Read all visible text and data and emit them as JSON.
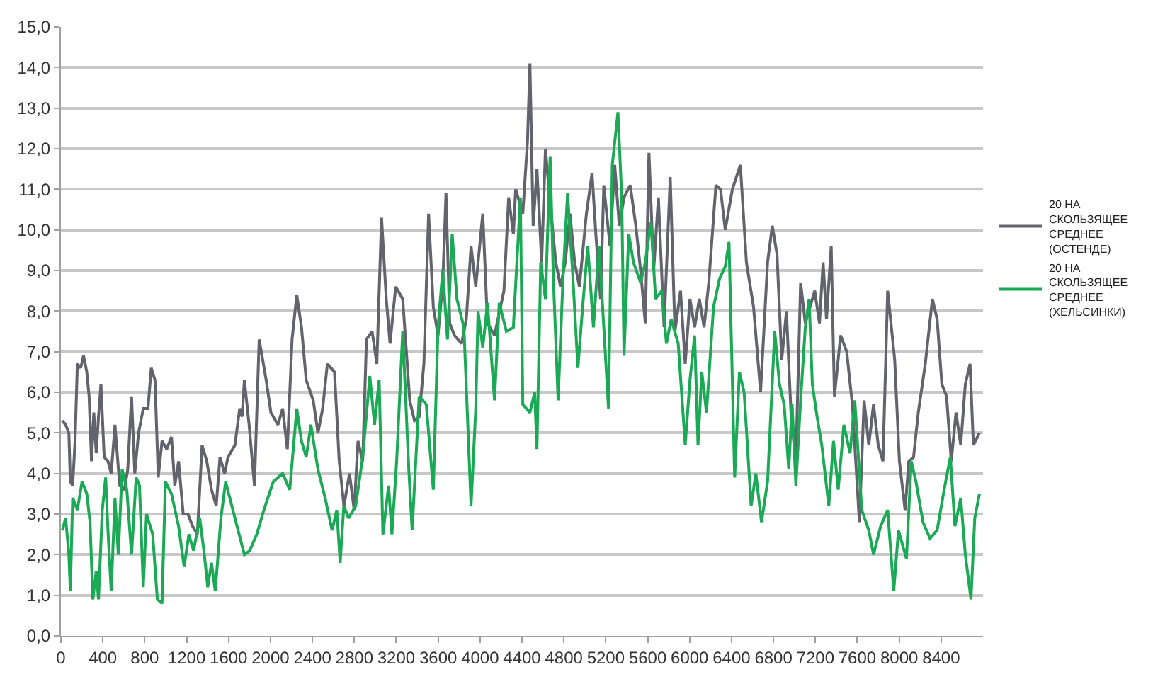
{
  "chart_data": {
    "type": "line",
    "xlim": [
      0,
      8800
    ],
    "xticks": [
      0,
      400,
      800,
      1200,
      1600,
      2000,
      2400,
      2800,
      3200,
      3600,
      4000,
      4400,
      4800,
      5200,
      5600,
      6000,
      6400,
      6800,
      7200,
      7600,
      8000,
      8400
    ],
    "ylim": [
      0,
      15
    ],
    "yticks": [
      {
        "value": 0,
        "label": "0,0"
      },
      {
        "value": 1,
        "label": "1,0"
      },
      {
        "value": 2,
        "label": "2,0"
      },
      {
        "value": 3,
        "label": "3,0"
      },
      {
        "value": 4,
        "label": "4,0"
      },
      {
        "value": 5,
        "label": "5,0"
      },
      {
        "value": 6,
        "label": "6,0"
      },
      {
        "value": 7,
        "label": "7,0"
      },
      {
        "value": 8,
        "label": "8,0"
      },
      {
        "value": 9,
        "label": "9,0"
      },
      {
        "value": 10,
        "label": "10,0"
      },
      {
        "value": 11,
        "label": "11,0"
      },
      {
        "value": 12,
        "label": "12,0"
      },
      {
        "value": 13,
        "label": "13,0"
      },
      {
        "value": 14,
        "label": "14,0"
      },
      {
        "value": 15,
        "label": "15,0"
      }
    ],
    "grid": "y",
    "legend": "right",
    "marker": "none",
    "line_style": "solid",
    "series": [
      {
        "name": "20 НА СКОЛЬЗЯЩЕЕ СРЕДНЕЕ (ОСТЕНДЕ)",
        "color": "#63636e",
        "x": [
          13,
          45,
          76,
          90,
          112,
          135,
          157,
          189,
          216,
          247,
          269,
          292,
          314,
          337,
          359,
          382,
          413,
          449,
          480,
          516,
          561,
          606,
          638,
          674,
          705,
          741,
          786,
          831,
          862,
          898,
          929,
          965,
          1010,
          1055,
          1087,
          1123,
          1167,
          1212,
          1257,
          1302,
          1347,
          1392,
          1437,
          1482,
          1518,
          1563,
          1594,
          1661,
          1706,
          1729,
          1751,
          1796,
          1847,
          1892,
          1959,
          2004,
          2071,
          2116,
          2161,
          2206,
          2251,
          2296,
          2341,
          2408,
          2453,
          2498,
          2543,
          2611,
          2656,
          2701,
          2754,
          2799,
          2835,
          2880,
          2916,
          2970,
          3015,
          3060,
          3105,
          3141,
          3195,
          3262,
          3329,
          3374,
          3419,
          3464,
          3509,
          3554,
          3599,
          3644,
          3675,
          3711,
          3756,
          3824,
          3869,
          3914,
          3959,
          4026,
          4071,
          4138,
          4228,
          4273,
          4318,
          4340,
          4408,
          4453,
          4476,
          4507,
          4543,
          4588,
          4624,
          4678,
          4723,
          4768,
          4813,
          4858,
          4903,
          4948,
          5015,
          5069,
          5105,
          5150,
          5181,
          5240,
          5285,
          5329,
          5374,
          5433,
          5487,
          5532,
          5577,
          5612,
          5657,
          5702,
          5756,
          5815,
          5860,
          5913,
          5958,
          6003,
          6048,
          6093,
          6138,
          6183,
          6251,
          6295,
          6340,
          6408,
          6484,
          6542,
          6610,
          6677,
          6744,
          6789,
          6834,
          6879,
          6924,
          6969,
          7014,
          7059,
          7104,
          7149,
          7194,
          7239,
          7274,
          7306,
          7351,
          7382,
          7441,
          7499,
          7553,
          7620,
          7665,
          7710,
          7755,
          7800,
          7845,
          7890,
          7957,
          8002,
          8056,
          8092,
          8137,
          8182,
          8249,
          8317,
          8362,
          8407,
          8452,
          8497,
          8542,
          8587,
          8631,
          8676,
          8708,
          8766
        ],
        "values": [
          5.3,
          5.2,
          5.0,
          3.8,
          3.7,
          4.8,
          6.7,
          6.6,
          6.9,
          6.5,
          5.9,
          4.3,
          5.5,
          4.5,
          5.4,
          6.2,
          4.4,
          4.3,
          4.0,
          5.2,
          3.7,
          3.6,
          4.1,
          5.9,
          4.0,
          5.0,
          5.6,
          5.6,
          6.6,
          6.3,
          3.9,
          4.8,
          4.6,
          4.9,
          3.7,
          4.3,
          3.0,
          3.0,
          2.7,
          2.5,
          4.7,
          4.3,
          3.6,
          3.2,
          4.4,
          4.0,
          4.4,
          4.7,
          5.6,
          5.4,
          6.3,
          5.2,
          3.7,
          7.3,
          6.3,
          5.5,
          5.2,
          5.6,
          4.6,
          7.3,
          8.4,
          7.6,
          6.3,
          5.8,
          5.0,
          5.6,
          6.7,
          6.5,
          4.3,
          3.2,
          4.0,
          3.1,
          4.8,
          4.3,
          7.3,
          7.5,
          6.7,
          10.3,
          8.3,
          7.2,
          8.6,
          8.3,
          5.8,
          5.3,
          5.4,
          6.7,
          10.4,
          8.1,
          7.4,
          8.7,
          10.9,
          7.7,
          7.4,
          7.2,
          7.8,
          9.6,
          8.6,
          10.4,
          7.7,
          7.4,
          8.5,
          10.8,
          9.9,
          11.0,
          10.4,
          12.2,
          14.1,
          10.1,
          11.5,
          9.2,
          12.0,
          10.4,
          9.2,
          8.6,
          9.2,
          10.4,
          9.2,
          8.6,
          10.4,
          11.4,
          9.9,
          8.3,
          11.1,
          9.6,
          11.6,
          10.1,
          10.8,
          11.1,
          10.1,
          9.0,
          7.7,
          11.9,
          9.0,
          10.8,
          7.6,
          11.3,
          7.5,
          8.5,
          6.7,
          8.3,
          7.6,
          8.3,
          7.6,
          8.7,
          11.1,
          11.0,
          10.0,
          11.0,
          11.6,
          9.2,
          8.1,
          6.0,
          9.2,
          10.1,
          9.4,
          6.8,
          8.0,
          5.4,
          4.3,
          8.7,
          7.7,
          8.1,
          8.5,
          7.7,
          9.2,
          7.8,
          9.6,
          5.9,
          7.4,
          7.0,
          5.7,
          2.8,
          5.8,
          4.7,
          5.7,
          4.7,
          4.3,
          8.5,
          6.8,
          4.3,
          3.1,
          4.3,
          4.4,
          5.5,
          6.7,
          8.3,
          7.8,
          6.2,
          5.9,
          4.3,
          5.5,
          4.7,
          6.2,
          6.7,
          4.7,
          5.0
        ]
      },
      {
        "name": "20 НА СКОЛЬЗЯЩЕЕ СРЕДНЕЕ (ХЕЛЬСИНКИ)",
        "color": "#1aaa55",
        "x": [
          13,
          45,
          76,
          90,
          112,
          157,
          202,
          247,
          278,
          305,
          337,
          359,
          395,
          427,
          449,
          480,
          516,
          548,
          584,
          629,
          674,
          718,
          750,
          786,
          817,
          876,
          920,
          965,
          997,
          1055,
          1123,
          1176,
          1221,
          1266,
          1325,
          1369,
          1401,
          1437,
          1473,
          1527,
          1572,
          1661,
          1751,
          1802,
          1869,
          1937,
          2027,
          2116,
          2184,
          2251,
          2296,
          2341,
          2386,
          2453,
          2521,
          2588,
          2633,
          2665,
          2700,
          2745,
          2813,
          2880,
          2948,
          2993,
          3037,
          3073,
          3127,
          3159,
          3204,
          3262,
          3320,
          3352,
          3419,
          3487,
          3554,
          3599,
          3644,
          3689,
          3734,
          3779,
          3846,
          3914,
          3959,
          3981,
          4026,
          4071,
          4138,
          4183,
          4251,
          4318,
          4385,
          4408,
          4476,
          4521,
          4543,
          4579,
          4624,
          4669,
          4700,
          4745,
          4790,
          4835,
          4880,
          4934,
          4979,
          5028,
          5082,
          5136,
          5181,
          5226,
          5262,
          5316,
          5352,
          5374,
          5419,
          5464,
          5532,
          5577,
          5631,
          5675,
          5734,
          5779,
          5824,
          5891,
          5958,
          6003,
          6048,
          6080,
          6116,
          6161,
          6228,
          6286,
          6340,
          6376,
          6430,
          6475,
          6520,
          6587,
          6632,
          6686,
          6744,
          6812,
          6857,
          6902,
          6946,
          6978,
          7014,
          7059,
          7104,
          7140,
          7171,
          7216,
          7261,
          7328,
          7373,
          7418,
          7472,
          7531,
          7576,
          7643,
          7710,
          7755,
          7823,
          7890,
          7948,
          7993,
          8069,
          8115,
          8160,
          8227,
          8294,
          8362,
          8429,
          8488,
          8532,
          8587,
          8631,
          8685,
          8721,
          8766
        ],
        "values": [
          2.6,
          2.9,
          2.0,
          1.1,
          3.4,
          3.1,
          3.8,
          3.5,
          2.8,
          0.9,
          1.6,
          0.9,
          3.1,
          3.9,
          2.6,
          1.1,
          3.4,
          2.0,
          4.1,
          3.6,
          2.0,
          3.9,
          3.7,
          1.2,
          3.0,
          2.5,
          0.9,
          0.8,
          3.8,
          3.5,
          2.7,
          1.7,
          2.5,
          2.1,
          2.9,
          2.0,
          1.2,
          1.8,
          1.1,
          2.9,
          3.8,
          2.9,
          2.0,
          2.1,
          2.5,
          3.1,
          3.8,
          4.0,
          3.6,
          5.6,
          4.8,
          4.4,
          5.2,
          4.1,
          3.4,
          2.6,
          3.1,
          1.8,
          3.2,
          2.9,
          3.2,
          4.4,
          6.4,
          5.2,
          6.3,
          2.5,
          3.7,
          2.5,
          4.3,
          7.5,
          4.1,
          2.6,
          5.9,
          5.7,
          3.6,
          7.6,
          9.0,
          7.3,
          9.9,
          8.3,
          7.6,
          3.2,
          5.6,
          8.0,
          7.1,
          8.2,
          5.8,
          8.2,
          7.5,
          7.6,
          10.8,
          5.7,
          5.5,
          6.0,
          4.6,
          9.2,
          8.3,
          11.8,
          8.8,
          5.8,
          8.7,
          10.9,
          9.1,
          6.6,
          8.1,
          9.6,
          7.6,
          9.6,
          7.6,
          5.6,
          11.6,
          12.9,
          10.8,
          6.9,
          9.9,
          9.2,
          8.7,
          9.2,
          10.2,
          8.3,
          8.5,
          7.2,
          7.8,
          7.2,
          4.7,
          6.3,
          7.4,
          4.7,
          6.5,
          5.5,
          8.1,
          8.8,
          9.1,
          9.7,
          3.9,
          6.5,
          6.0,
          3.2,
          4.0,
          2.8,
          3.8,
          7.5,
          6.2,
          5.7,
          4.1,
          5.7,
          3.7,
          5.8,
          7.6,
          8.3,
          6.2,
          5.4,
          4.7,
          3.2,
          4.8,
          3.6,
          5.2,
          4.5,
          5.8,
          3.1,
          2.6,
          2.0,
          2.7,
          3.1,
          1.1,
          2.6,
          1.9,
          4.3,
          3.8,
          2.8,
          2.4,
          2.6,
          3.6,
          4.4,
          2.7,
          3.4,
          2.0,
          0.9,
          2.9,
          3.5
        ]
      }
    ]
  }
}
